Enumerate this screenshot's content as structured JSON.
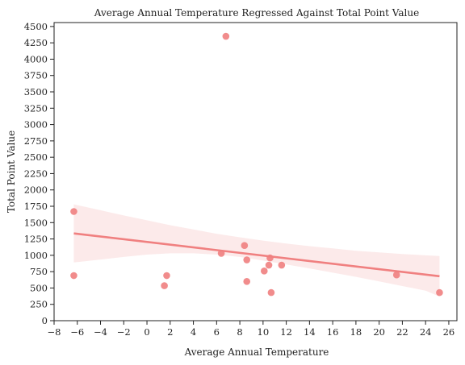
{
  "chart_data": {
    "type": "scatter",
    "title": "Average Annual Temperature Regressed Against Total Point Value",
    "xlabel": "Average Annual Temperature",
    "ylabel": "Total Point Value",
    "xlim": [
      -8,
      26.7
    ],
    "ylim": [
      0,
      4560
    ],
    "xticks": [
      -8,
      -6,
      -4,
      -2,
      0,
      2,
      4,
      6,
      8,
      10,
      12,
      14,
      16,
      18,
      20,
      22,
      24,
      26
    ],
    "xtick_labels": [
      "−8",
      "−6",
      "−4",
      "−2",
      "0",
      "2",
      "4",
      "6",
      "8",
      "10",
      "12",
      "14",
      "16",
      "18",
      "20",
      "22",
      "24",
      "26"
    ],
    "yticks": [
      0,
      250,
      500,
      750,
      1000,
      1250,
      1500,
      1750,
      2000,
      2250,
      2500,
      2750,
      3000,
      3250,
      3500,
      3750,
      4000,
      4250,
      4500
    ],
    "ytick_labels": [
      "0",
      "250",
      "500",
      "750",
      "1000",
      "1250",
      "1500",
      "1750",
      "2000",
      "2250",
      "2500",
      "2750",
      "3000",
      "3250",
      "3500",
      "3750",
      "4000",
      "4250",
      "4500"
    ],
    "grid": false,
    "color": "#f08080",
    "points": [
      {
        "x": -6.3,
        "y": 1670
      },
      {
        "x": -6.3,
        "y": 690
      },
      {
        "x": 1.5,
        "y": 535
      },
      {
        "x": 1.7,
        "y": 690
      },
      {
        "x": 6.8,
        "y": 4350
      },
      {
        "x": 6.4,
        "y": 1030
      },
      {
        "x": 8.4,
        "y": 1150
      },
      {
        "x": 8.6,
        "y": 930
      },
      {
        "x": 8.6,
        "y": 600
      },
      {
        "x": 10.1,
        "y": 760
      },
      {
        "x": 10.5,
        "y": 850
      },
      {
        "x": 10.6,
        "y": 960
      },
      {
        "x": 10.7,
        "y": 430
      },
      {
        "x": 11.6,
        "y": 850
      },
      {
        "x": 21.5,
        "y": 700
      },
      {
        "x": 25.2,
        "y": 430
      }
    ],
    "regression": {
      "x": [
        -6.3,
        25.2
      ],
      "y": [
        1335,
        680
      ]
    },
    "confidence_band": {
      "x": [
        -6.3,
        -4,
        -2,
        0,
        2,
        4,
        6,
        8,
        10,
        12,
        14,
        16,
        18,
        20,
        22,
        24,
        25.2
      ],
      "upper": [
        1780,
        1690,
        1610,
        1535,
        1460,
        1395,
        1330,
        1275,
        1225,
        1180,
        1140,
        1105,
        1070,
        1045,
        1020,
        1000,
        990
      ],
      "lower": [
        890,
        935,
        975,
        1010,
        1030,
        1030,
        1010,
        975,
        920,
        860,
        800,
        735,
        670,
        600,
        530,
        460,
        370
      ]
    }
  }
}
